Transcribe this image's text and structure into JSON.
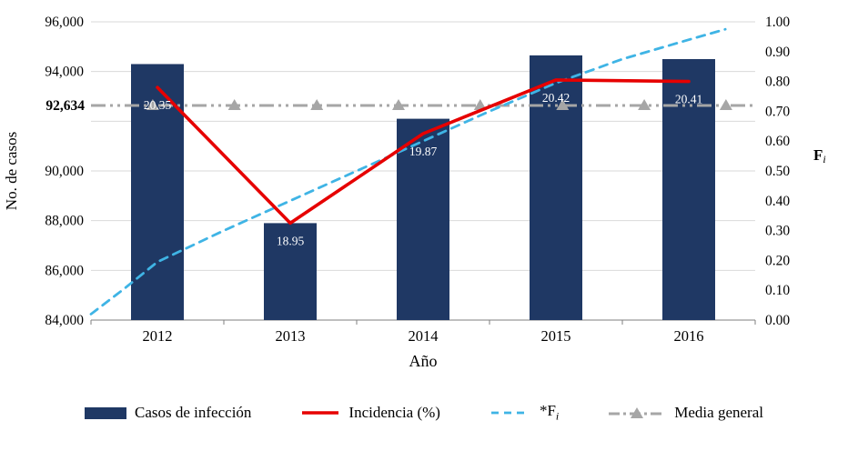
{
  "chart_data": {
    "type": "combo",
    "categories": [
      "2012",
      "2013",
      "2014",
      "2015",
      "2016"
    ],
    "bars": {
      "name": "Casos de infección",
      "values": [
        94300,
        87900,
        92100,
        94650,
        94500
      ],
      "color": "#1F3864",
      "width": 58
    },
    "incidencia": {
      "name": "Incidencia (%)",
      "values": [
        20.35,
        18.95,
        19.87,
        20.42,
        20.41
      ],
      "labels": [
        "20.35",
        "18.95",
        "19.87",
        "20.42",
        "20.41"
      ],
      "plotted_on_right_axis": [
        0.78,
        0.325,
        0.625,
        0.805,
        0.8
      ],
      "color": "#E60000",
      "label_color": "#FFFFFF"
    },
    "fi": {
      "name": "*Fi",
      "cumulative_by_year": [
        0.2,
        0.4,
        0.6,
        0.8,
        1.0
      ],
      "drawn_curve": [
        [
          0,
          0.02
        ],
        [
          0.05,
          0.105
        ],
        [
          0.1,
          0.195
        ],
        [
          0.2,
          0.3
        ],
        [
          0.3,
          0.4
        ],
        [
          0.4,
          0.5
        ],
        [
          0.5,
          0.6
        ],
        [
          0.6,
          0.7
        ],
        [
          0.7,
          0.795
        ],
        [
          0.8,
          0.875
        ],
        [
          0.9,
          0.94
        ],
        [
          0.955,
          0.975
        ]
      ],
      "color": "#3FB4E5"
    },
    "media_general": {
      "name": "Media general",
      "value": 92634,
      "label": "92,634",
      "color": "#A6A6A6",
      "marker_positions": [
        0.093,
        0.216,
        0.34,
        0.463,
        0.586,
        0.71,
        0.833,
        0.956
      ]
    },
    "left_axis": {
      "title": "No. de casos",
      "min": 84000,
      "max": 96000,
      "step": 2000,
      "hidden_tick": 92000
    },
    "right_axis": {
      "title_main": "F",
      "title_sub": "i",
      "min": 0,
      "max": 1,
      "step": 0.1
    },
    "x_axis": {
      "title": "Año"
    },
    "colors": {
      "grid": "#D9D9D9",
      "axis": "#7F7F7F",
      "text": "#000000"
    }
  },
  "legend": {
    "items": [
      {
        "label": "Casos de infección"
      },
      {
        "label": "Incidencia (%)"
      },
      {
        "label_main": "*F",
        "label_sub": "i"
      },
      {
        "label": "Media general"
      }
    ]
  }
}
